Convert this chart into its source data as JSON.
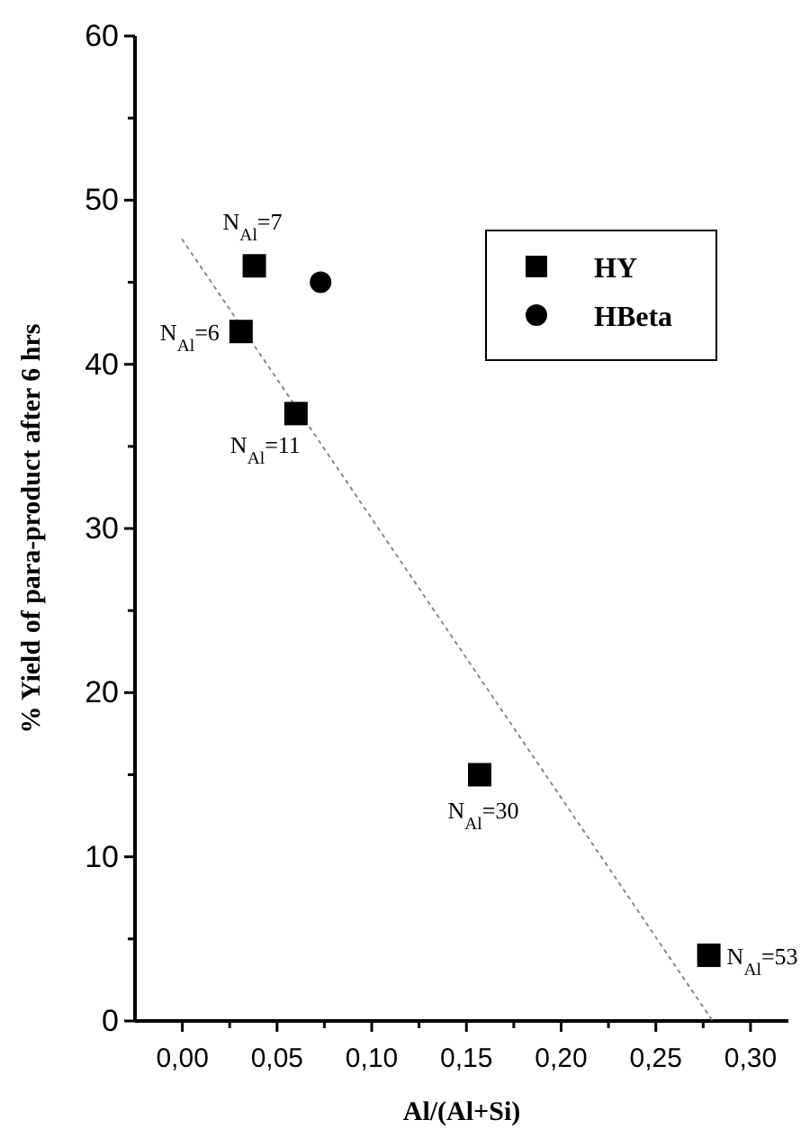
{
  "chart_data": {
    "type": "scatter",
    "xlabel": "Al/(Al+Si)",
    "ylabel": "% Yield of para-product after 6 hrs",
    "xlim": [
      -0.025,
      0.32
    ],
    "ylim": [
      0,
      60
    ],
    "xticks": [
      {
        "value": 0,
        "label": "0,00"
      },
      {
        "value": 0.025,
        "label": null
      },
      {
        "value": 0.05,
        "label": "0,05"
      },
      {
        "value": 0.075,
        "label": null
      },
      {
        "value": 0.1,
        "label": "0,10"
      },
      {
        "value": 0.125,
        "label": null
      },
      {
        "value": 0.15,
        "label": "0,15"
      },
      {
        "value": 0.175,
        "label": null
      },
      {
        "value": 0.2,
        "label": "0,20"
      },
      {
        "value": 0.225,
        "label": null
      },
      {
        "value": 0.25,
        "label": "0,25"
      },
      {
        "value": 0.275,
        "label": null
      },
      {
        "value": 0.3,
        "label": "0,30"
      }
    ],
    "yticks": [
      0,
      {
        "value": 5,
        "label": null
      },
      10,
      {
        "value": 15,
        "label": null
      },
      20,
      {
        "value": 25,
        "label": null
      },
      30,
      {
        "value": 35,
        "label": null
      },
      40,
      {
        "value": 45,
        "label": null
      },
      50,
      {
        "value": 55,
        "label": null
      },
      60
    ],
    "series": [
      {
        "name": "HY",
        "color": "#000000",
        "marker": "square",
        "x": [
          0.031,
          0.038,
          0.06,
          0.157,
          0.278
        ],
        "values": [
          42,
          46,
          37,
          15,
          4
        ]
      },
      {
        "name": "HBeta",
        "color": "#000000",
        "marker": "circle",
        "x": [
          0.073
        ],
        "values": [
          45
        ]
      },
      {
        "type": "line",
        "color": "#888888",
        "line_style": "dotted",
        "x": [
          0,
          0.28
        ],
        "values": [
          47.6,
          0
        ]
      }
    ],
    "annotations": [
      {
        "text": "N$_{Al}$=7",
        "x": 0.038,
        "y": 46
      },
      {
        "text": "N$_{Al}$=6",
        "x": 0.031,
        "y": 42
      },
      {
        "text": "N$_{Al}$=11",
        "x": 0.06,
        "y": 37
      },
      {
        "text": "N$_{Al}$=30",
        "x": 0.157,
        "y": 15
      },
      {
        "text": "N$_{Al}$=53",
        "x": 0.278,
        "y": 4
      }
    ],
    "legend": "top right",
    "grid": false
  }
}
